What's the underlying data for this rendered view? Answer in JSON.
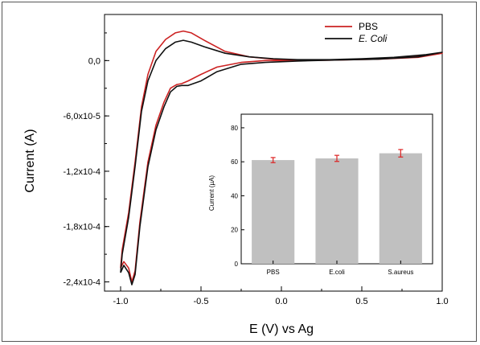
{
  "chart_data": [
    {
      "type": "line",
      "xlabel": "E (V) vs Ag",
      "ylabel": "Current (A)",
      "xlim": [
        -1.1,
        1.0
      ],
      "ylim": [
        -0.00025,
        5e-05
      ],
      "x_ticks": [
        -1.0,
        -0.5,
        0.0,
        0.5,
        1.0
      ],
      "x_tick_labels": [
        "-1.0",
        "-0.5",
        "0.0",
        "0.5",
        "1.0"
      ],
      "y_ticks": [
        0.0,
        -6e-05,
        -0.00012,
        -0.00018,
        -0.00024
      ],
      "y_tick_labels": [
        "0,0",
        "-6,0x10-5",
        "-1,2x10-4",
        "-1,8x10-4",
        "-2,4x10-4"
      ],
      "legend_position": "top-right",
      "series": [
        {
          "name": "PBS",
          "color": "#cc2222",
          "points": [
            [
              -1.0,
              -0.000225
            ],
            [
              -0.98,
              -0.000218
            ],
            [
              -0.95,
              -0.000225
            ],
            [
              -0.93,
              -0.00024
            ],
            [
              -0.91,
              -0.000228
            ],
            [
              -0.88,
              -0.000175
            ],
            [
              -0.83,
              -0.00011
            ],
            [
              -0.78,
              -7e-05
            ],
            [
              -0.73,
              -4.5e-05
            ],
            [
              -0.69,
              -3e-05
            ],
            [
              -0.65,
              -2.6e-05
            ],
            [
              -0.62,
              -2.5e-05
            ],
            [
              -0.58,
              -2.2e-05
            ],
            [
              -0.5,
              -1.5e-05
            ],
            [
              -0.4,
              -7e-06
            ],
            [
              -0.25,
              -2e-06
            ],
            [
              -0.1,
              0.0
            ],
            [
              0.1,
              0.0
            ],
            [
              0.3,
              5e-07
            ],
            [
              0.6,
              1.5e-06
            ],
            [
              0.85,
              3.5e-06
            ],
            [
              1.0,
              8e-06
            ],
            [
              0.9,
              6e-06
            ],
            [
              0.7,
              3e-06
            ],
            [
              0.5,
              1.5e-06
            ],
            [
              0.3,
              5e-07
            ],
            [
              0.1,
              5e-07
            ],
            [
              -0.05,
              1.5e-06
            ],
            [
              -0.2,
              4e-06
            ],
            [
              -0.35,
              1e-05
            ],
            [
              -0.48,
              2.2e-05
            ],
            [
              -0.56,
              3e-05
            ],
            [
              -0.61,
              3.2e-05
            ],
            [
              -0.66,
              3e-05
            ],
            [
              -0.72,
              2.3e-05
            ],
            [
              -0.78,
              1e-05
            ],
            [
              -0.83,
              -1.5e-05
            ],
            [
              -0.87,
              -5e-05
            ],
            [
              -0.91,
              -0.00011
            ],
            [
              -0.95,
              -0.000165
            ],
            [
              -0.99,
              -0.000205
            ],
            [
              -1.0,
              -0.000225
            ]
          ]
        },
        {
          "name": "E. Coli",
          "color": "#111111",
          "points": [
            [
              -1.0,
              -0.00023
            ],
            [
              -0.98,
              -0.000222
            ],
            [
              -0.95,
              -0.00023
            ],
            [
              -0.93,
              -0.000243
            ],
            [
              -0.91,
              -0.000232
            ],
            [
              -0.88,
              -0.00018
            ],
            [
              -0.83,
              -0.000115
            ],
            [
              -0.78,
              -7.5e-05
            ],
            [
              -0.73,
              -5e-05
            ],
            [
              -0.69,
              -3.4e-05
            ],
            [
              -0.65,
              -2.8e-05
            ],
            [
              -0.62,
              -2.7e-05
            ],
            [
              -0.58,
              -2.7e-05
            ],
            [
              -0.5,
              -2.2e-05
            ],
            [
              -0.4,
              -1.2e-05
            ],
            [
              -0.25,
              -4e-06
            ],
            [
              -0.1,
              -2e-06
            ],
            [
              0.1,
              -5e-07
            ],
            [
              0.3,
              5e-07
            ],
            [
              0.6,
              1.5e-06
            ],
            [
              0.85,
              4e-06
            ],
            [
              1.0,
              9e-06
            ],
            [
              0.9,
              6.5e-06
            ],
            [
              0.7,
              3.5e-06
            ],
            [
              0.5,
              2e-06
            ],
            [
              0.3,
              1e-06
            ],
            [
              0.1,
              1e-06
            ],
            [
              -0.05,
              2e-06
            ],
            [
              -0.2,
              4e-06
            ],
            [
              -0.35,
              8e-06
            ],
            [
              -0.48,
              1.5e-05
            ],
            [
              -0.56,
              2e-05
            ],
            [
              -0.61,
              2.2e-05
            ],
            [
              -0.66,
              2e-05
            ],
            [
              -0.72,
              1.3e-05
            ],
            [
              -0.78,
              0.0
            ],
            [
              -0.83,
              -2.2e-05
            ],
            [
              -0.87,
              -5.5e-05
            ],
            [
              -0.91,
              -0.000115
            ],
            [
              -0.95,
              -0.00017
            ],
            [
              -0.99,
              -0.00021
            ],
            [
              -1.0,
              -0.00023
            ]
          ]
        }
      ]
    },
    {
      "type": "bar",
      "ylabel": "Current (µA)",
      "categories": [
        "PBS",
        "E.coli",
        "S.aureus"
      ],
      "values": [
        61,
        62,
        65
      ],
      "errors": [
        1.5,
        1.8,
        2.2
      ],
      "error_color": "#dd2222",
      "bar_color": "#c0c0c0",
      "ylim": [
        0,
        88
      ],
      "y_ticks": [
        0,
        20,
        40,
        60,
        80
      ],
      "y_tick_labels": [
        "0",
        "20",
        "40",
        "60",
        "80"
      ]
    }
  ]
}
